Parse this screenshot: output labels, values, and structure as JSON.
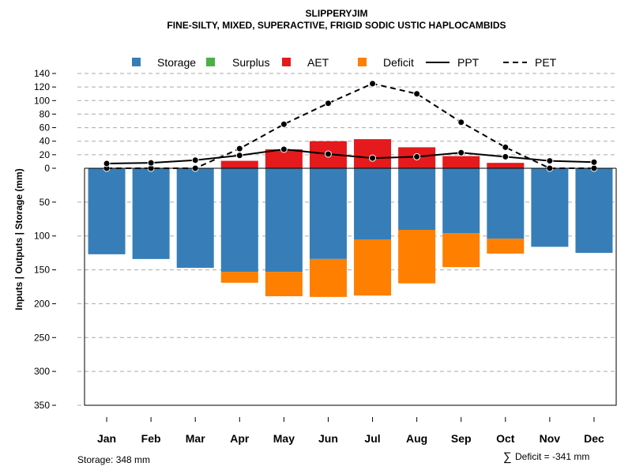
{
  "chart_data": {
    "type": "bar",
    "title": "SLIPPERYJIM",
    "subtitle": "FINE-SILTY, MIXED, SUPERACTIVE, FRIGID SODIC USTIC HAPLOCAMBIDS",
    "ylabel": "Inputs | Outputs | Storage    (mm)",
    "categories": [
      "Jan",
      "Feb",
      "Mar",
      "Apr",
      "May",
      "Jun",
      "Jul",
      "Aug",
      "Sep",
      "Oct",
      "Nov",
      "Dec"
    ],
    "y_ticks_up": [
      0,
      20,
      40,
      60,
      80,
      100,
      120,
      140
    ],
    "y_ticks_down": [
      50,
      100,
      150,
      200,
      250,
      300,
      350
    ],
    "ylim_up": [
      0,
      140
    ],
    "ylim_down": [
      0,
      350
    ],
    "series": [
      {
        "name": "Storage",
        "color": "#377EB8",
        "values": [
          127,
          134,
          147,
          153,
          153,
          134,
          105,
          91,
          96,
          104,
          116,
          125
        ]
      },
      {
        "name": "Surplus",
        "color": "#4DAF4A",
        "values": [
          0,
          0,
          0,
          0,
          0,
          0,
          0,
          0,
          0,
          0,
          0,
          0
        ]
      },
      {
        "name": "AET",
        "color": "#E41A1C",
        "values": [
          0,
          0,
          0,
          11,
          28,
          40,
          43,
          31,
          18,
          8,
          0,
          0
        ]
      },
      {
        "name": "Deficit",
        "color": "#FF7F00",
        "values": [
          0,
          0,
          0,
          16,
          36,
          56,
          83,
          79,
          50,
          22,
          0,
          0
        ]
      },
      {
        "name": "PPT",
        "color": "#000000",
        "line": "solid",
        "values": [
          7,
          8,
          12,
          19,
          28,
          21,
          15,
          17,
          23,
          17,
          11,
          9
        ]
      },
      {
        "name": "PET",
        "color": "#000000",
        "line": "dashed",
        "values": [
          0,
          0,
          0,
          29,
          65,
          96,
          125,
          110,
          68,
          31,
          0,
          0
        ]
      }
    ],
    "legend_position": "top",
    "grid": true
  },
  "footer": {
    "storage_text": "Storage: 348 mm",
    "deficit_symbol": "∑",
    "deficit_text": "Deficit = -341 mm"
  }
}
